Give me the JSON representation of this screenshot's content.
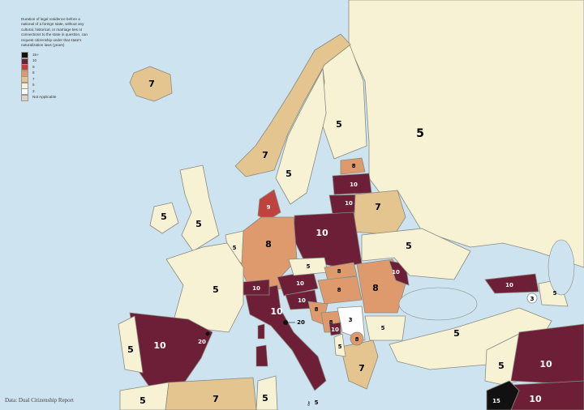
{
  "legend": {
    "title": "Duration of legal residence before a national of a foreign state, without any cultural, historical, or marriage ties or connections to the state in question, can request citizenship under that state's naturalization laws (years)",
    "items": [
      {
        "label": "15+",
        "color": "#111111"
      },
      {
        "label": "10",
        "color": "#6e1f38"
      },
      {
        "label": "9",
        "color": "#c0423f"
      },
      {
        "label": "8",
        "color": "#de9a6c"
      },
      {
        "label": "7",
        "color": "#e4c48f"
      },
      {
        "label": "5",
        "color": "#f8f2d5"
      },
      {
        "label": "3",
        "color": "#ffffff"
      },
      {
        "label": "Not Applicable",
        "color": "#d8d3c6"
      }
    ]
  },
  "source": "Data: Dual Citizenship Report",
  "colors": {
    "15": "#111111",
    "15+": "#111111",
    "10": "#6e1f38",
    "9": "#c0423f",
    "8": "#de9a6c",
    "7": "#e4c48f",
    "5": "#f8f2d5",
    "3": "#ffffff",
    "20": "#111111"
  },
  "regions": [
    {
      "value": "5"
    },
    {
      "value": "5"
    },
    {
      "value": "7"
    },
    {
      "value": "5"
    },
    {
      "value": "7"
    },
    {
      "value": "5"
    },
    {
      "value": "5"
    },
    {
      "value": "9"
    },
    {
      "value": "8"
    },
    {
      "value": "10"
    },
    {
      "value": "10"
    },
    {
      "value": "7"
    },
    {
      "value": "10"
    },
    {
      "value": "8"
    },
    {
      "value": "5"
    },
    {
      "value": "5"
    },
    {
      "value": "10"
    },
    {
      "value": "5"
    },
    {
      "value": "10"
    },
    {
      "value": "10"
    },
    {
      "value": "10"
    },
    {
      "value": "10"
    },
    {
      "value": "5"
    },
    {
      "value": "8"
    },
    {
      "value": "8"
    },
    {
      "value": "8"
    },
    {
      "value": "8"
    },
    {
      "value": "3"
    },
    {
      "value": "8"
    },
    {
      "value": "10"
    },
    {
      "value": "5"
    },
    {
      "value": "5"
    },
    {
      "value": "7"
    },
    {
      "value": "8"
    },
    {
      "value": "10"
    },
    {
      "value": "5"
    },
    {
      "value": "5"
    },
    {
      "value": "10"
    },
    {
      "value": "3"
    },
    {
      "value": "5"
    },
    {
      "value": "5"
    },
    {
      "value": "10"
    },
    {
      "value": "10"
    },
    {
      "value": "15"
    },
    {
      "value": "5"
    },
    {
      "value": "7"
    },
    {
      "value": "5"
    }
  ],
  "annotations": {
    "microstate_italy": "20",
    "microstate_spain": "20",
    "malta": "5"
  }
}
